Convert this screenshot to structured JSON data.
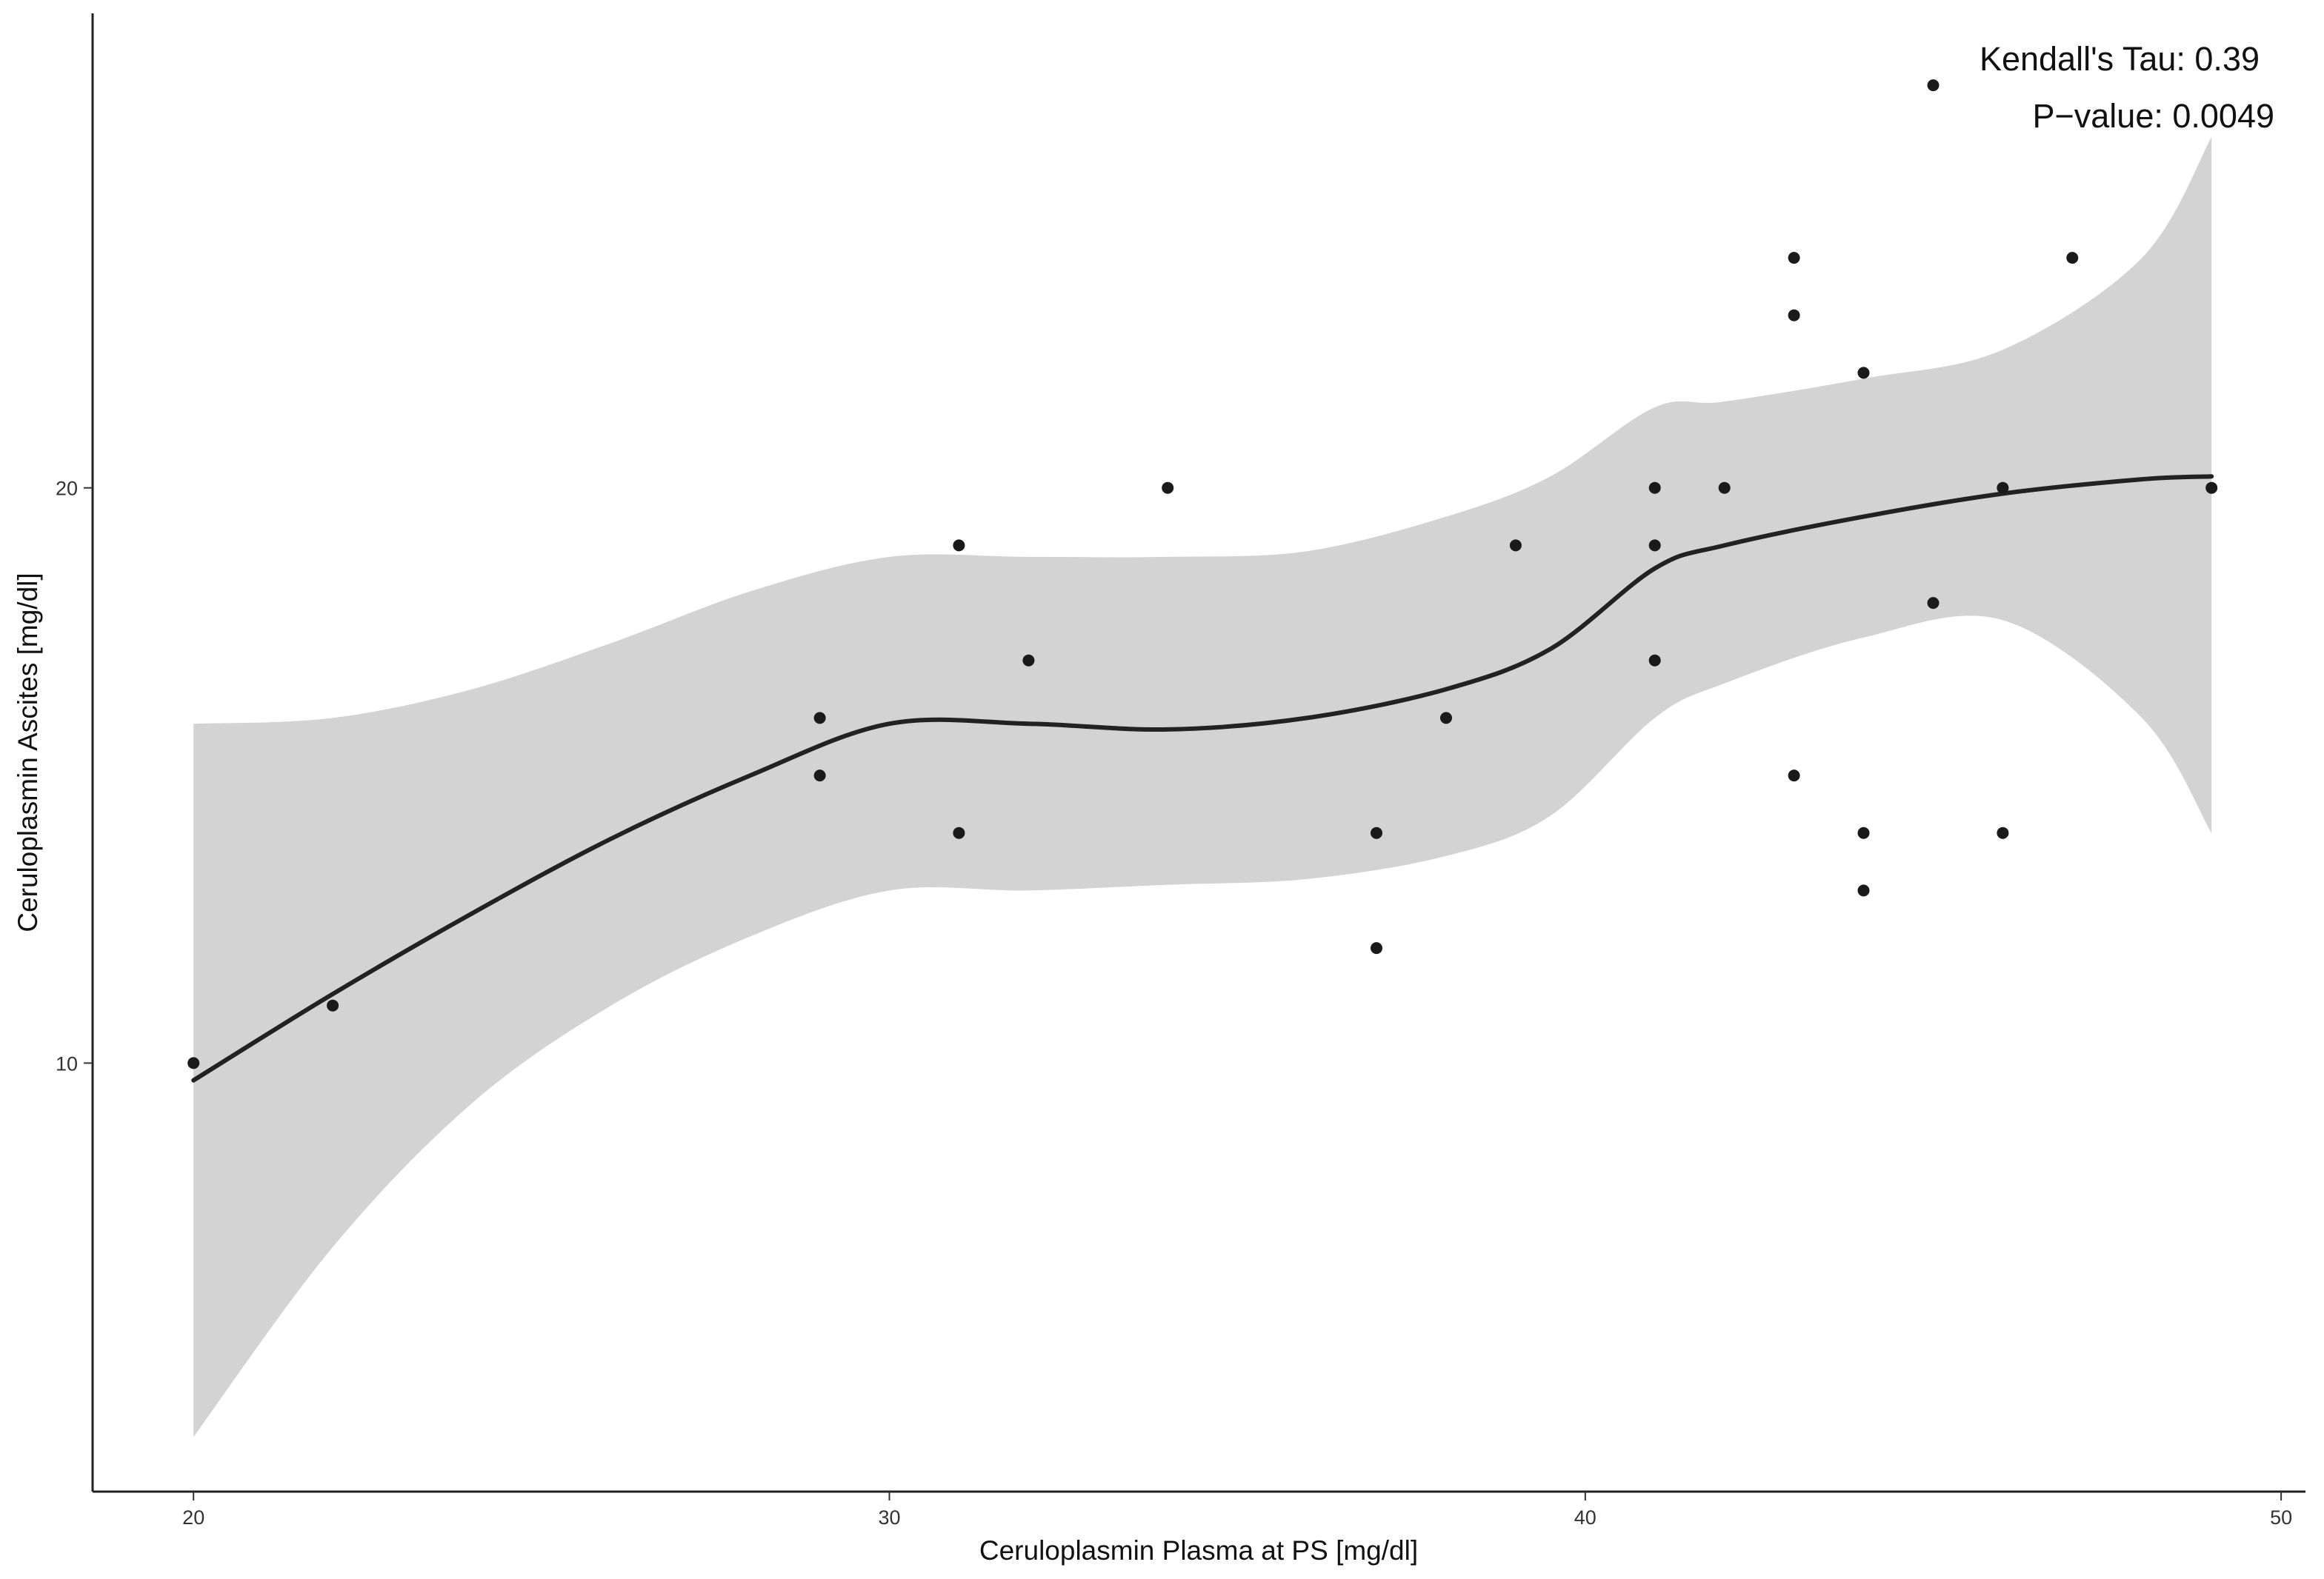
{
  "chart_data": {
    "type": "scatter",
    "xlabel": "Ceruloplasmin Plasma at PS [mg/dl]",
    "ylabel": "Ceruloplasmin Ascites [mg/dl]",
    "xlim": [
      18.55,
      50.35
    ],
    "ylim": [
      2.55,
      28.25
    ],
    "x_ticks": [
      20,
      30,
      40,
      50
    ],
    "y_ticks": [
      10,
      20
    ],
    "x_tick_labels": [
      "20",
      "30",
      "40",
      "50"
    ],
    "y_tick_labels": [
      "10",
      "20"
    ],
    "grid": false,
    "annotations": [
      "Kendall's Tau: 0.39",
      "P−value: 0.0049"
    ],
    "colors": {
      "points": "#1a1a1a",
      "smooth_line": "#222222",
      "confidence_band": "#d3d3d3",
      "axis": "#222222"
    },
    "points": [
      {
        "x": 20,
        "y": 10
      },
      {
        "x": 22,
        "y": 11
      },
      {
        "x": 29,
        "y": 16
      },
      {
        "x": 29,
        "y": 15
      },
      {
        "x": 31,
        "y": 19
      },
      {
        "x": 31,
        "y": 14
      },
      {
        "x": 32,
        "y": 17
      },
      {
        "x": 34,
        "y": 20
      },
      {
        "x": 37,
        "y": 14
      },
      {
        "x": 37,
        "y": 12
      },
      {
        "x": 38,
        "y": 16
      },
      {
        "x": 39,
        "y": 19
      },
      {
        "x": 41,
        "y": 20
      },
      {
        "x": 41,
        "y": 19
      },
      {
        "x": 41,
        "y": 17
      },
      {
        "x": 42,
        "y": 20
      },
      {
        "x": 43,
        "y": 24
      },
      {
        "x": 43,
        "y": 23
      },
      {
        "x": 43,
        "y": 15
      },
      {
        "x": 44,
        "y": 22
      },
      {
        "x": 44,
        "y": 14
      },
      {
        "x": 44,
        "y": 13
      },
      {
        "x": 45,
        "y": 27
      },
      {
        "x": 45,
        "y": 18
      },
      {
        "x": 46,
        "y": 20
      },
      {
        "x": 46,
        "y": 14
      },
      {
        "x": 47,
        "y": 24
      },
      {
        "x": 49,
        "y": 20
      }
    ],
    "smooth": {
      "x": [
        20,
        22,
        24,
        26,
        28,
        30,
        32,
        34,
        36,
        38,
        39.5,
        41,
        42,
        44,
        46,
        48,
        49
      ],
      "y": [
        9.7,
        11.2,
        12.6,
        13.9,
        15.0,
        15.9,
        15.9,
        15.8,
        16.0,
        16.5,
        17.2,
        18.6,
        19.0,
        19.5,
        19.9,
        20.15,
        20.2
      ],
      "lower": [
        3.5,
        6.8,
        9.3,
        11.0,
        12.2,
        13.0,
        13.0,
        13.1,
        13.2,
        13.6,
        14.3,
        16.0,
        16.6,
        17.4,
        17.7,
        16.0,
        14.0
      ],
      "upper": [
        15.9,
        16.0,
        16.5,
        17.3,
        18.2,
        18.8,
        18.8,
        18.8,
        18.9,
        19.5,
        20.2,
        21.4,
        21.5,
        21.9,
        22.4,
        24.0,
        26.1
      ]
    }
  }
}
